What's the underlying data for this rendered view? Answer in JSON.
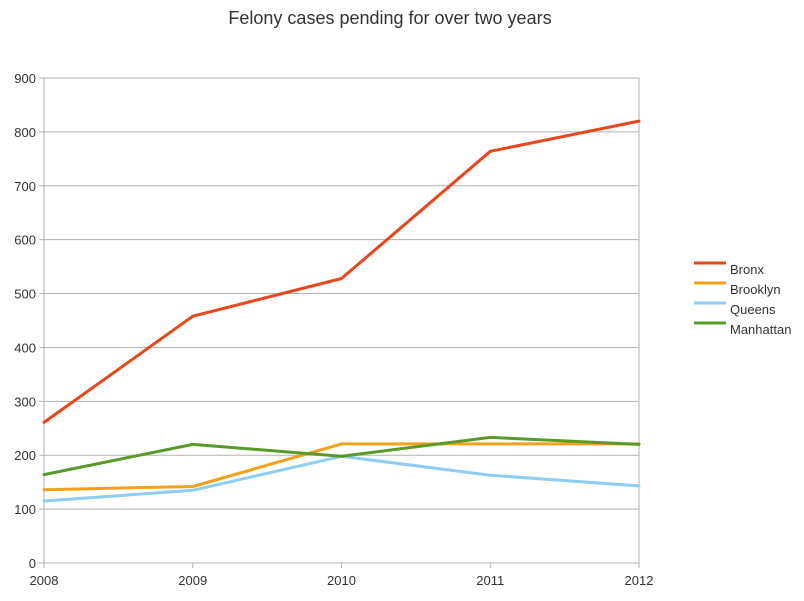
{
  "chart_data": {
    "type": "line",
    "title": "Felony cases pending for over two years",
    "xlabel": "",
    "ylabel": "",
    "categories": [
      "2008",
      "2009",
      "2010",
      "2011",
      "2012"
    ],
    "ylim": [
      0,
      900
    ],
    "yticks": [
      "0",
      "100",
      "200",
      "300",
      "400",
      "500",
      "600",
      "700",
      "800",
      "900"
    ],
    "grid": true,
    "legend_position": "right",
    "series": [
      {
        "name": "Bronx",
        "color": "#E8471E",
        "values": [
          261,
          458,
          528,
          764,
          820
        ]
      },
      {
        "name": "Brooklyn",
        "color": "#F5A01A",
        "values": [
          136,
          142,
          221,
          221,
          221
        ]
      },
      {
        "name": "Queens",
        "color": "#8FCDF2",
        "values": [
          115,
          135,
          198,
          163,
          143
        ]
      },
      {
        "name": "Manhattan",
        "color": "#5A9A2A",
        "values": [
          164,
          220,
          198,
          233,
          220
        ]
      }
    ]
  }
}
